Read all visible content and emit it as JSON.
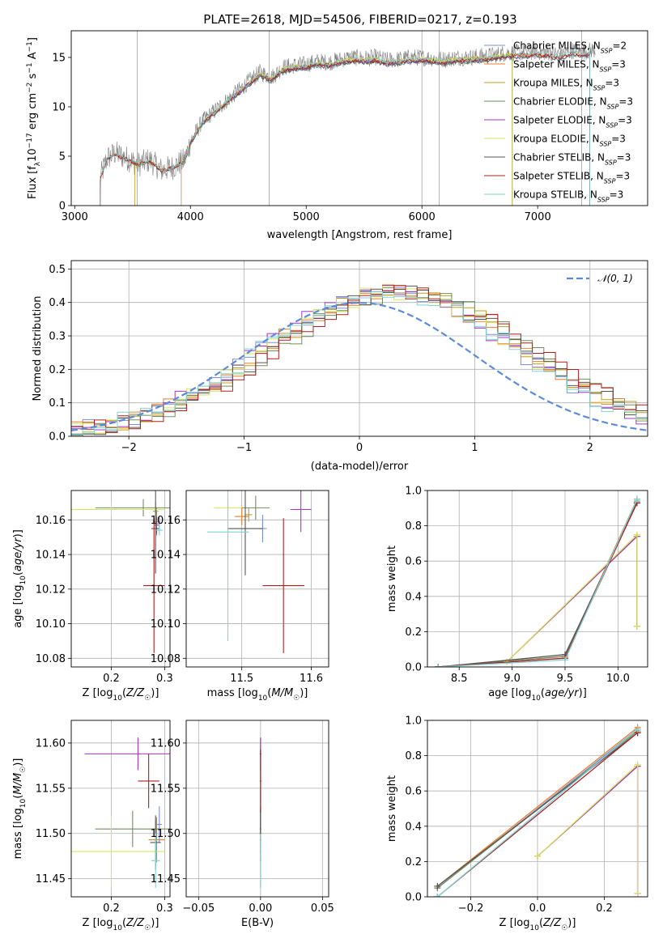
{
  "figure": {
    "title": "PLATE=2618, MJD=54506, FIBERID=0217, z=0.193"
  },
  "models": [
    {
      "name": "Chabrier MILES",
      "nssp": "2",
      "color": "#7b8fd6"
    },
    {
      "name": "Salpeter MILES",
      "nssp": "3",
      "color": "#ee7d2b"
    },
    {
      "name": "Kroupa MILES",
      "nssp": "3",
      "color": "#c59a1e"
    },
    {
      "name": "Chabrier ELODIE",
      "nssp": "3",
      "color": "#6e8e5e"
    },
    {
      "name": "Salpeter ELODIE",
      "nssp": "3",
      "color": "#a634c7"
    },
    {
      "name": "Kroupa ELODIE",
      "nssp": "3",
      "color": "#d6e55f"
    },
    {
      "name": "Chabrier STELIB",
      "nssp": "3",
      "color": "#555555"
    },
    {
      "name": "Salpeter STELIB",
      "nssp": "3",
      "color": "#b21f1f"
    },
    {
      "name": "Kroupa STELIB",
      "nssp": "3",
      "color": "#7fd3d4"
    }
  ],
  "data_color": "#808080",
  "chart_data": [
    {
      "id": "spectrum",
      "type": "line",
      "xlabel": "wavelength [Angstrom, rest frame]",
      "ylabel": "Flux [f_λ10^-17 erg cm^-2 s^-1 A^-1]",
      "xlim": [
        2970,
        7950
      ],
      "ylim": [
        0,
        17.7
      ],
      "xticks": [
        3000,
        4000,
        5000,
        6000,
        7000
      ],
      "yticks": [
        0,
        5,
        10,
        15
      ],
      "grid": false,
      "legend": "right",
      "continuum": {
        "x": [
          3220,
          3280,
          3350,
          3450,
          3550,
          3650,
          3750,
          3850,
          3950,
          4000,
          4100,
          4200,
          4300,
          4400,
          4500,
          4600,
          4700,
          4800,
          4900,
          5000,
          5100,
          5200,
          5300,
          5400,
          5500,
          5600,
          5700,
          5800,
          5900,
          6000,
          6100,
          6200,
          6300,
          6400,
          6500,
          6600,
          6700,
          6800,
          6900,
          7000,
          7100,
          7200,
          7300,
          7400,
          7500
        ],
        "y": [
          2.8,
          4.8,
          5.3,
          4.8,
          4.2,
          4.6,
          3.6,
          3.9,
          4.6,
          6.5,
          8.5,
          9.5,
          10.5,
          11.5,
          12.5,
          13.5,
          13.0,
          14.0,
          14.2,
          14.3,
          14.6,
          14.5,
          14.8,
          15.0,
          14.9,
          15.0,
          14.7,
          14.8,
          15.0,
          15.0,
          14.9,
          14.8,
          15.0,
          15.0,
          15.1,
          15.2,
          15.4,
          15.5,
          15.5,
          15.6,
          15.5,
          15.3,
          15.7,
          15.6,
          15.8
        ]
      },
      "spectral_lines": [
        3540,
        4680,
        6000,
        6150,
        7380
      ],
      "model_starts": [
        3220,
        3220,
        3520,
        3920,
        3920,
        3920,
        3220,
        3220,
        3220
      ],
      "model_ends": [
        7450,
        7450,
        6780,
        6780,
        6780,
        6780,
        7450,
        7450,
        7450
      ]
    },
    {
      "id": "residuals",
      "type": "histogram",
      "xlabel": "(data-model)/error",
      "ylabel": "Normed distribution",
      "xlim": [
        -2.5,
        2.5
      ],
      "ylim": [
        0,
        0.525
      ],
      "xticks": [
        -2,
        -1,
        0,
        1,
        2
      ],
      "yticks": [
        0,
        0.1,
        0.2,
        0.3,
        0.4,
        0.5
      ],
      "grid": true,
      "legend": "top-right",
      "reference": {
        "label": "𝒩(0, 1)",
        "mean": 0,
        "sigma": 1
      },
      "bin_width": 0.1
    },
    {
      "id": "age-vs-z",
      "type": "scatter",
      "xlabel": "Z [log10(Z/Z☉)]",
      "ylabel": "age  [log10(age/yr)]",
      "xlim": [
        0.125,
        0.31
      ],
      "ylim": [
        10.075,
        10.177
      ],
      "xticks": [
        0.2,
        0.3
      ],
      "yticks": [
        10.08,
        10.1,
        10.12,
        10.14,
        10.16
      ],
      "grid": true,
      "points": [
        {
          "x": 0.29,
          "y": 10.158,
          "xerr": 0.005,
          "yerr": 0.004
        },
        {
          "x": 0.285,
          "y": 10.159,
          "xerr": 0.007,
          "yerr": 0.008
        },
        {
          "x": 0.283,
          "y": 10.165,
          "xerr": 0.005,
          "yerr": 0.005
        },
        {
          "x": 0.26,
          "y": 10.167,
          "xerr": 0.09,
          "yerr": 0.005
        },
        {
          "x": 0.285,
          "y": 10.157,
          "xerr": 0.004,
          "yerr": 0.005
        },
        {
          "x": 0.2,
          "y": 10.166,
          "xerr": 0.1,
          "yerr": 0.004
        },
        {
          "x": 0.283,
          "y": 10.155,
          "xerr": 0.008,
          "yerr": 0.026
        },
        {
          "x": 0.28,
          "y": 10.122,
          "xerr": 0.02,
          "yerr": 0.039
        },
        {
          "x": 0.29,
          "y": 10.154,
          "xerr": 0.006,
          "yerr": 0.003
        }
      ]
    },
    {
      "id": "age-vs-mass",
      "type": "scatter",
      "xlabel": "mass [log10(M/M☉)]",
      "ylabel": "",
      "xlim": [
        11.42,
        11.625
      ],
      "ylim": [
        10.075,
        10.177
      ],
      "xticks": [
        11.5,
        11.6
      ],
      "yticks": [
        10.08,
        10.1,
        10.12,
        10.14,
        10.16
      ],
      "grid": true,
      "points": [
        {
          "x": 11.53,
          "y": 10.155,
          "xerr": 0.006,
          "yerr": 0.008
        },
        {
          "x": 11.5,
          "y": 10.162,
          "xerr": 0.01,
          "yerr": 0.005
        },
        {
          "x": 11.51,
          "y": 10.163,
          "xerr": 0.005,
          "yerr": 0.004
        },
        {
          "x": 11.52,
          "y": 10.167,
          "xerr": 0.02,
          "yerr": 0.007
        },
        {
          "x": 11.585,
          "y": 10.166,
          "xerr": 0.015,
          "yerr": 0.013
        },
        {
          "x": 11.48,
          "y": 10.167,
          "xerr": 0.02,
          "yerr": 0.004
        },
        {
          "x": 11.505,
          "y": 10.155,
          "xerr": 0.025,
          "yerr": 0.027
        },
        {
          "x": 11.56,
          "y": 10.122,
          "xerr": 0.03,
          "yerr": 0.039
        },
        {
          "x": 11.48,
          "y": 10.153,
          "xerr": 0.03,
          "yerr": 0.063
        }
      ]
    },
    {
      "id": "mass-weight-vs-age",
      "type": "line",
      "xlabel": "age  [log10(age/yr)]",
      "ylabel": "mass weight",
      "xlim": [
        8.2,
        10.28
      ],
      "ylim": [
        0,
        1.0
      ],
      "xticks": [
        8.5,
        9.0,
        9.5,
        10.0
      ],
      "yticks": [
        0.0,
        0.2,
        0.4,
        0.6,
        0.8,
        1.0
      ],
      "grid": true,
      "series": [
        {
          "x": [
            8.3,
            9.5,
            10.18
          ],
          "y": [
            0.0,
            0.05,
            0.95
          ]
        },
        {
          "x": [
            8.3,
            9.5,
            10.18
          ],
          "y": [
            0.0,
            0.06,
            0.95
          ]
        },
        {
          "x": [
            8.95,
            10.18,
            10.18
          ],
          "y": [
            0.03,
            0.74,
            0.23
          ]
        },
        {
          "x": [
            8.3,
            9.5,
            10.18
          ],
          "y": [
            0.0,
            0.06,
            0.94
          ]
        },
        {
          "x": [
            8.95,
            10.18,
            10.18
          ],
          "y": [
            0.03,
            0.74,
            0.23
          ]
        },
        {
          "x": [
            8.95,
            10.18,
            10.18
          ],
          "y": [
            0.03,
            0.75,
            0.23
          ]
        },
        {
          "x": [
            8.3,
            9.5,
            10.18
          ],
          "y": [
            0.0,
            0.07,
            0.93
          ]
        },
        {
          "x": [
            8.3,
            9.5,
            10.18
          ],
          "y": [
            0.0,
            0.05,
            0.93
          ]
        },
        {
          "x": [
            8.3,
            9.5,
            10.18
          ],
          "y": [
            0.0,
            0.04,
            0.95
          ]
        }
      ]
    },
    {
      "id": "mass-vs-z",
      "type": "scatter",
      "xlabel": "Z [log10(Z/Z☉)]",
      "ylabel": "mass [log10(M/M☉)]",
      "xlim": [
        0.125,
        0.31
      ],
      "ylim": [
        11.43,
        11.625
      ],
      "xticks": [
        0.2,
        0.3
      ],
      "yticks": [
        11.45,
        11.5,
        11.55,
        11.6
      ],
      "grid": true,
      "points": [
        {
          "x": 0.29,
          "y": 11.51,
          "xerr": 0.005,
          "yerr": 0.02
        },
        {
          "x": 0.285,
          "y": 11.493,
          "xerr": 0.015,
          "yerr": 0.025
        },
        {
          "x": 0.283,
          "y": 11.505,
          "xerr": 0.005,
          "yerr": 0.01
        },
        {
          "x": 0.24,
          "y": 11.505,
          "xerr": 0.07,
          "yerr": 0.02
        },
        {
          "x": 0.25,
          "y": 11.588,
          "xerr": 0.1,
          "yerr": 0.018
        },
        {
          "x": 0.2,
          "y": 11.48,
          "xerr": 0.1,
          "yerr": 0.04
        },
        {
          "x": 0.283,
          "y": 11.49,
          "xerr": 0.01,
          "yerr": 0.03
        },
        {
          "x": 0.27,
          "y": 11.558,
          "xerr": 0.02,
          "yerr": 0.03
        },
        {
          "x": 0.283,
          "y": 11.47,
          "xerr": 0.008,
          "yerr": 0.03
        }
      ]
    },
    {
      "id": "mass-vs-ebv",
      "type": "scatter",
      "xlabel": "E(B-V)",
      "ylabel": "",
      "xlim": [
        -0.06,
        0.055
      ],
      "ylim": [
        11.43,
        11.625
      ],
      "xticks": [
        -0.05,
        0.0,
        0.05
      ],
      "yticks": [
        11.45,
        11.5,
        11.55,
        11.6
      ],
      "grid": true,
      "points": [
        {
          "x": 0.0,
          "y": 11.505,
          "xerr": 0.0,
          "yerr": 0.02
        },
        {
          "x": 0.0,
          "y": 11.493,
          "xerr": 0.0,
          "yerr": 0.025
        },
        {
          "x": 0.0,
          "y": 11.505,
          "xerr": 0.0,
          "yerr": 0.01
        },
        {
          "x": 0.0,
          "y": 11.5,
          "xerr": 0.0,
          "yerr": 0.02
        },
        {
          "x": 0.0,
          "y": 11.588,
          "xerr": 0.0,
          "yerr": 0.018
        },
        {
          "x": 0.0,
          "y": 11.48,
          "xerr": 0.0,
          "yerr": 0.04
        },
        {
          "x": 0.0,
          "y": 11.5,
          "xerr": 0.0,
          "yerr": 0.03
        },
        {
          "x": 0.0,
          "y": 11.558,
          "xerr": 0.0,
          "yerr": 0.035
        },
        {
          "x": 0.0,
          "y": 11.47,
          "xerr": 0.0,
          "yerr": 0.03
        }
      ]
    },
    {
      "id": "mass-weight-vs-z",
      "type": "line",
      "xlabel": "Z [log10(Z/Z☉)]",
      "ylabel": "mass weight",
      "xlim": [
        -0.33,
        0.33
      ],
      "ylim": [
        0,
        1.0
      ],
      "xticks": [
        -0.2,
        0.0,
        0.2
      ],
      "yticks": [
        0.0,
        0.2,
        0.4,
        0.6,
        0.8,
        1.0
      ],
      "grid": true,
      "series": [
        {
          "x": [
            -0.3,
            0.3
          ],
          "y": [
            0.05,
            0.95
          ]
        },
        {
          "x": [
            -0.3,
            0.3
          ],
          "y": [
            0.06,
            0.96
          ]
        },
        {
          "x": [
            0.0,
            0.3,
            0.3
          ],
          "y": [
            0.23,
            0.74,
            0.02
          ]
        },
        {
          "x": [
            -0.3,
            0.3
          ],
          "y": [
            0.05,
            0.94
          ]
        },
        {
          "x": [
            0.0,
            0.3,
            0.3
          ],
          "y": [
            0.23,
            0.74,
            0.02
          ]
        },
        {
          "x": [
            0.0,
            0.3,
            0.3
          ],
          "y": [
            0.23,
            0.75,
            0.02
          ]
        },
        {
          "x": [
            -0.3,
            0.3
          ],
          "y": [
            0.06,
            0.93
          ]
        },
        {
          "x": [
            -0.3,
            0.3
          ],
          "y": [
            0.0,
            0.93
          ]
        },
        {
          "x": [
            -0.3,
            0.3
          ],
          "y": [
            0.0,
            0.95
          ]
        }
      ]
    }
  ]
}
